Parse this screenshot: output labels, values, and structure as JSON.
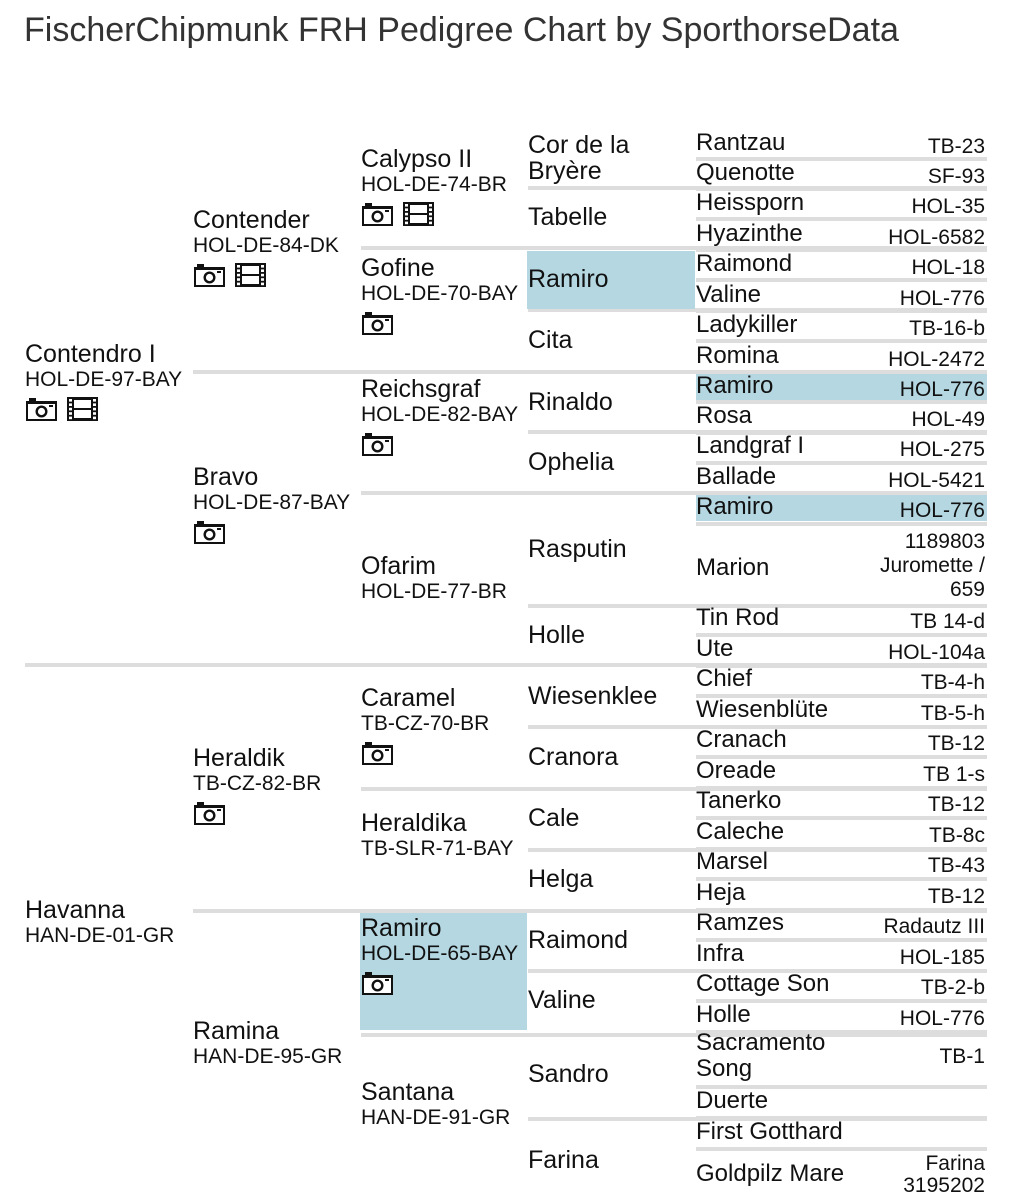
{
  "title": "FischerChipmunk FRH Pedigree Chart by SporthorseData",
  "icons": {
    "photo": "camera-icon",
    "video": "film-icon"
  },
  "colors": {
    "highlight": "#b4d7e2",
    "separator": "#dddddd"
  },
  "gen1": [
    {
      "name": "Contendro I",
      "reg": "HOL-DE-97-BAY",
      "photo": true,
      "video": true
    },
    {
      "name": "Havanna",
      "reg": "HAN-DE-01-GR",
      "photo": false,
      "video": false
    }
  ],
  "gen2": [
    {
      "name": "Contender",
      "reg": "HOL-DE-84-DK",
      "photo": true,
      "video": true
    },
    {
      "name": "Bravo",
      "reg": "HOL-DE-87-BAY",
      "photo": true,
      "video": false
    },
    {
      "name": "Heraldik",
      "reg": "TB-CZ-82-BR",
      "photo": true,
      "video": false
    },
    {
      "name": "Ramina",
      "reg": "HAN-DE-95-GR",
      "photo": false,
      "video": false
    }
  ],
  "gen3": [
    {
      "name": "Calypso II",
      "reg": "HOL-DE-74-BR",
      "photo": true,
      "video": true
    },
    {
      "name": "Gofine",
      "reg": "HOL-DE-70-BAY",
      "photo": true,
      "video": false
    },
    {
      "name": "Reichsgraf",
      "reg": "HOL-DE-82-BAY",
      "photo": true,
      "video": false
    },
    {
      "name": "Ofarim",
      "reg": "HOL-DE-77-BR",
      "photo": false,
      "video": false
    },
    {
      "name": "Caramel",
      "reg": "TB-CZ-70-BR",
      "photo": true,
      "video": false
    },
    {
      "name": "Heraldika",
      "reg": "TB-SLR-71-BAY",
      "photo": false,
      "video": false
    },
    {
      "name": "Ramiro",
      "reg": "HOL-DE-65-BAY",
      "photo": true,
      "video": false,
      "highlight": true
    },
    {
      "name": "Santana",
      "reg": "HAN-DE-91-GR",
      "photo": false,
      "video": false
    }
  ],
  "gen4": [
    {
      "name": "Cor de la Bryère"
    },
    {
      "name": "Tabelle"
    },
    {
      "name": "Ramiro",
      "highlight": true
    },
    {
      "name": "Cita"
    },
    {
      "name": "Rinaldo"
    },
    {
      "name": "Ophelia"
    },
    {
      "name": "Rasputin"
    },
    {
      "name": "Holle"
    },
    {
      "name": "Wiesenklee"
    },
    {
      "name": "Cranora"
    },
    {
      "name": "Cale"
    },
    {
      "name": "Helga"
    },
    {
      "name": "Raimond"
    },
    {
      "name": "Valine"
    },
    {
      "name": "Sandro"
    },
    {
      "name": "Farina"
    }
  ],
  "gen5": [
    {
      "name": "Rantzau",
      "reg": "TB-23"
    },
    {
      "name": "Quenotte",
      "reg": "SF-93"
    },
    {
      "name": "Heissporn",
      "reg": "HOL-35"
    },
    {
      "name": "Hyazinthe",
      "reg": "HOL-6582"
    },
    {
      "name": "Raimond",
      "reg": "HOL-18"
    },
    {
      "name": "Valine",
      "reg": "HOL-776"
    },
    {
      "name": "Ladykiller",
      "reg": "TB-16-b"
    },
    {
      "name": "Romina",
      "reg": "HOL-2472"
    },
    {
      "name": "Ramiro",
      "reg": "HOL-776",
      "highlight": true
    },
    {
      "name": "Rosa",
      "reg": "HOL-49"
    },
    {
      "name": "Landgraf I",
      "reg": "HOL-275"
    },
    {
      "name": "Ballade",
      "reg": "HOL-5421"
    },
    {
      "name": "Ramiro",
      "reg": "HOL-776",
      "highlight": true
    },
    {
      "name": "Marion",
      "reg": "1189803 Juromette / 659"
    },
    {
      "name": "Tin Rod",
      "reg": "TB 14-d"
    },
    {
      "name": "Ute",
      "reg": "HOL-104a"
    },
    {
      "name": "Chief",
      "reg": "TB-4-h"
    },
    {
      "name": "Wiesenblüte",
      "reg": "TB-5-h"
    },
    {
      "name": "Cranach",
      "reg": "TB-12"
    },
    {
      "name": "Oreade",
      "reg": "TB 1-s"
    },
    {
      "name": "Tanerko",
      "reg": "TB-12"
    },
    {
      "name": "Caleche",
      "reg": "TB-8c"
    },
    {
      "name": "Marsel",
      "reg": "TB-43"
    },
    {
      "name": "Heja",
      "reg": "TB-12"
    },
    {
      "name": "Ramzes",
      "reg": "Radautz III"
    },
    {
      "name": "Infra",
      "reg": "HOL-185"
    },
    {
      "name": "Cottage Son",
      "reg": "TB-2-b"
    },
    {
      "name": "Holle",
      "reg": "HOL-776"
    },
    {
      "name": "Sacramento Song",
      "reg": "TB-1"
    },
    {
      "name": "Duerte",
      "reg": ""
    },
    {
      "name": "First Gotthard",
      "reg": ""
    },
    {
      "name": "Goldpilz Mare",
      "reg": "Farina 3195202"
    }
  ]
}
